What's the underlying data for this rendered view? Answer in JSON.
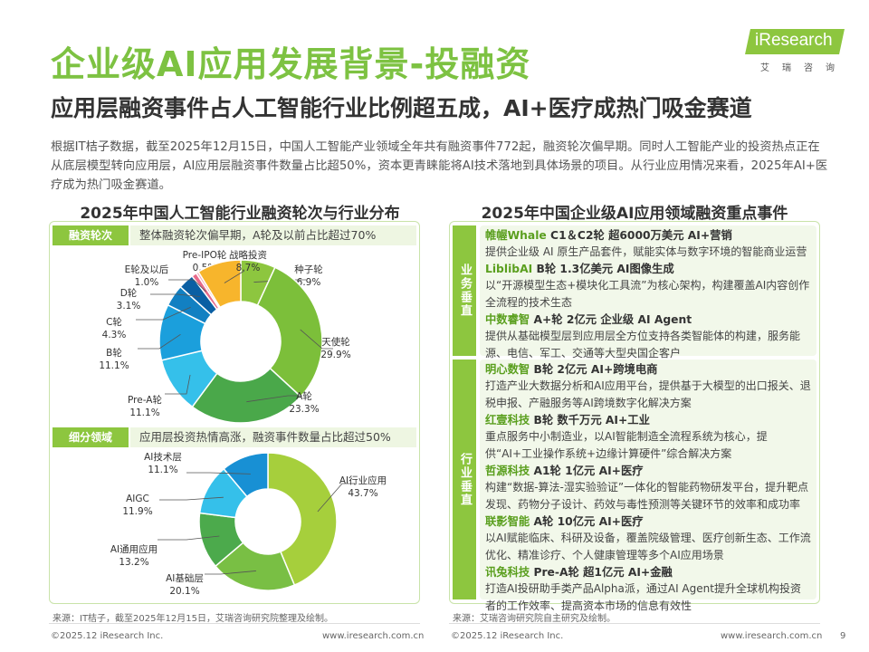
{
  "header": {
    "title": "企业级AI应用发展背景-投融资",
    "subtitle": "应用层融资事件占人工智能行业比例超五成，AI+医疗成热门吸金赛道",
    "logo_text": "iResearch",
    "logo_sub": "艾瑞咨询",
    "intro": "根据IT桔子数据，截至2025年12月15日，中国人工智能产业领域全年共有融资事件772起，融资轮次偏早期。同时人工智能产业的投资热点正在从底层模型转向应用层，AI应用层融资事件数量占比超50%，资本更青睐能将AI技术落地到具体场景的项目。从行业应用情况来看，2025年AI+医疗成为热门吸金赛道。"
  },
  "left": {
    "title": "2025年中国人工智能行业融资轮次与行业分布",
    "sec1_tag": "融资轮次",
    "sec1_desc": "整体融资轮次偏早期，A轮及以前占比超过70%",
    "sec2_tag": "细分领域",
    "sec2_desc": "应用层投资热情高涨，融资事件数量占比超过50%",
    "source": "来源：IT桔子，截至2025年12月15日，艾瑞咨询研究院整理及绘制。"
  },
  "chart_data": [
    {
      "type": "pie",
      "title": "融资轮次",
      "unit": "%",
      "slices": [
        {
          "label": "种子轮",
          "value": 6.9,
          "display": "6.9%",
          "color": "#8dc63f"
        },
        {
          "label": "天使轮",
          "value": 29.9,
          "display": "29.9%",
          "color": "#7cbf3a"
        },
        {
          "label": "A轮",
          "value": 23.3,
          "display": "23.3%",
          "color": "#4aa84a"
        },
        {
          "label": "Pre-A轮",
          "value": 11.1,
          "display": "11.1%",
          "color": "#35c0ea"
        },
        {
          "label": "B轮",
          "value": 11.1,
          "display": "11.1%",
          "color": "#1b9fdc"
        },
        {
          "label": "C轮",
          "value": 4.3,
          "display": "4.3%",
          "color": "#1280c2"
        },
        {
          "label": "D轮",
          "value": 3.1,
          "display": "3.1%",
          "color": "#0a5fa3"
        },
        {
          "label": "E轮及以后",
          "value": 1.0,
          "display": "1.0%",
          "color": "#e76a8a"
        },
        {
          "label": "Pre-IPO轮",
          "value": 0.5,
          "display": "0.5%",
          "color": "#f2a8b8"
        },
        {
          "label": "战略投资",
          "value": 8.7,
          "display": "8.7%",
          "color": "#f7b52c"
        }
      ]
    },
    {
      "type": "pie",
      "title": "细分领域",
      "unit": "%",
      "slices": [
        {
          "label": "AI行业应用",
          "value": 43.7,
          "display": "43.7%",
          "color": "#a6cf3c"
        },
        {
          "label": "AI基础层",
          "value": 20.1,
          "display": "20.1%",
          "color": "#79bf44"
        },
        {
          "label": "AI通用应用",
          "value": 13.2,
          "display": "13.2%",
          "color": "#4caa4c"
        },
        {
          "label": "AIGC",
          "value": 11.9,
          "display": "11.9%",
          "color": "#35c0ea"
        },
        {
          "label": "AI技术层",
          "value": 11.1,
          "display": "11.1%",
          "color": "#1890d4"
        }
      ]
    }
  ],
  "right": {
    "title": "2025年中国企业级AI应用领域融资重点事件",
    "group1": "业务垂直",
    "group2": "行业垂直",
    "events1": [
      {
        "company": "帷幄Whale",
        "deal": "C1＆C2轮 超6000万美元 AI+营销",
        "desc": "提供企业级 AI 原生产品套件，赋能实体与数字环境的智能商业运营"
      },
      {
        "company": "LiblibAI",
        "deal": "B轮 1.3亿美元 AI图像生成",
        "desc": "以“开源模型生态+模块化工具流”为核心架构，构建覆盖AI内容创作全流程的技术生态"
      },
      {
        "company": "中数睿智",
        "deal": "A+轮 2亿元 企业级 AI Agent",
        "desc": "提供从基础模型层到应用层全方位支持各类智能体的构建，服务能源、电信、军工、交通等大型央国企客户"
      }
    ],
    "events2": [
      {
        "company": "明心数智",
        "deal": "B轮 2亿元 AI+跨境电商",
        "desc": "打造产业大数据分析和AI应用平台，提供基于大模型的出口报关、退税申报、产融服务等AI跨境数字化解决方案"
      },
      {
        "company": "红壹科技",
        "deal": "B轮 数千万元 AI+工业",
        "desc": "重点服务中小制造业，以AI智能制造全流程系统为核心，提供“AI+工业操作系统+边缘计算硬件”综合解决方案"
      },
      {
        "company": "哲源科技",
        "deal": "A1轮 1亿元 AI+医疗",
        "desc": "构建“数据-算法-湿实验验证”一体化的智能药物研发平台，提升靶点发现、药物分子设计、药效与毒性预测等关键环节的效率和成功率"
      },
      {
        "company": "联影智能",
        "deal": "A轮 10亿元 AI+医疗",
        "desc": "以AI赋能临床、科研及设备，覆盖院级管理、医疗创新生态、工作流优化、精准诊疗、个人健康管理等多个AI应用场景"
      },
      {
        "company": "讯兔科技",
        "deal": "Pre-A轮 超1亿元 AI+金融",
        "desc": "打造AI投研助手类产品Alpha派，通过AI Agent提升全球机构投资者的工作效率、提高资本市场的信息有效性"
      }
    ],
    "source": "来源：艾瑞咨询研究院自主研究及绘制。"
  },
  "footer": {
    "left_copy": "©2025.12 iResearch Inc.",
    "left_url": "www.iresearch.com.cn",
    "right_copy": "©2025.12 iResearch Inc.",
    "right_url": "www.iresearch.com.cn",
    "page": "9"
  }
}
